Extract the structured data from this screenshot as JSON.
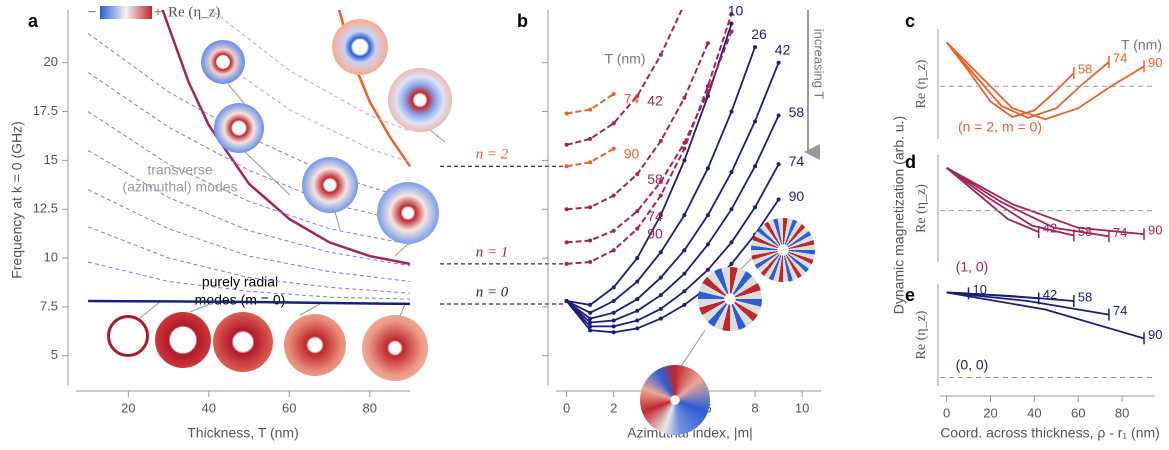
{
  "chart_data": [
    {
      "type": "line",
      "panel": "a",
      "xlabel": "Thickness, T (nm)",
      "ylabel": "Frequency at k = 0 (GHz)",
      "xlim": [
        7,
        90
      ],
      "ylim": [
        3.5,
        22.7
      ],
      "xticks": [
        20,
        40,
        60,
        80
      ],
      "yticks": [
        5,
        7.5,
        10,
        12.5,
        15,
        17.5,
        20
      ],
      "colorbar": {
        "low": "−",
        "high": "+",
        "label": "Re (η_z)"
      },
      "annotations": [
        "transverse",
        "(azimuthal) modes",
        "purely radial",
        "modes (m = 0)"
      ],
      "series": [
        {
          "name": "n = 0",
          "color": "#1b1f7a",
          "x": [
            10,
            30,
            50,
            70,
            90
          ],
          "values": [
            7.8,
            7.78,
            7.75,
            7.7,
            7.65
          ]
        },
        {
          "name": "n = 1",
          "color": "#a3245a",
          "x": [
            28,
            35,
            40,
            50,
            60,
            70,
            80,
            90
          ],
          "values": [
            23,
            19,
            16.8,
            13.8,
            12,
            10.8,
            10.1,
            9.7
          ]
        },
        {
          "name": "n = 2",
          "color": "#e8622a",
          "x": [
            72,
            76,
            80,
            85,
            90
          ],
          "values": [
            23,
            20,
            18,
            16.2,
            14.7
          ]
        },
        {
          "color": "#7b7fd6",
          "line_style": "dashed",
          "x": [
            10,
            30,
            50,
            70,
            90
          ],
          "values": [
            21.5,
            18.5,
            16.2,
            14.3,
            13
          ]
        },
        {
          "color": "#7b7fd6",
          "line_style": "dashed",
          "x": [
            10,
            30,
            50,
            70,
            90
          ],
          "values": [
            19.5,
            16.7,
            14.5,
            12.8,
            11.8
          ]
        },
        {
          "color": "#7b7fd6",
          "line_style": "dashed",
          "x": [
            10,
            30,
            50,
            70,
            90
          ],
          "values": [
            17.5,
            14.8,
            12.9,
            11.5,
            10.7
          ]
        },
        {
          "color": "#7b7fd6",
          "line_style": "dashed",
          "x": [
            10,
            30,
            50,
            70,
            90
          ],
          "values": [
            15.5,
            13.1,
            11.4,
            10.3,
            9.6
          ]
        },
        {
          "color": "#7b7fd6",
          "line_style": "dashed",
          "x": [
            10,
            30,
            50,
            70,
            90
          ],
          "values": [
            13.5,
            11.5,
            10.1,
            9.3,
            8.8
          ]
        },
        {
          "color": "#7b7fd6",
          "line_style": "dashed",
          "x": [
            10,
            30,
            50,
            70,
            90
          ],
          "values": [
            11.6,
            10,
            9,
            8.5,
            8.2
          ]
        },
        {
          "color": "#7b7fd6",
          "line_style": "dashed",
          "x": [
            10,
            30,
            50,
            70,
            90
          ],
          "values": [
            9.8,
            8.8,
            8.3,
            8,
            7.9
          ]
        },
        {
          "color": "#e79ab5",
          "line_style": "dashed",
          "x": [
            40,
            60,
            80,
            90
          ],
          "values": [
            20.5,
            17.6,
            15.6,
            14.9
          ]
        },
        {
          "color": "#e79ab5",
          "line_style": "dashed",
          "x": [
            40,
            60,
            80,
            90
          ],
          "values": [
            22.8,
            19.6,
            17.3,
            16.5
          ]
        }
      ]
    },
    {
      "type": "line",
      "panel": "b",
      "xlabel": "Azimuthal index, |m|",
      "legend_title": "T (nm)",
      "annotation": "increasing T",
      "xlim": [
        -0.45,
        10.8
      ],
      "ylim": [
        3.5,
        22.7
      ],
      "xticks": [
        0,
        2,
        4,
        6,
        8,
        10
      ],
      "markers": true,
      "x": [
        0,
        1,
        2,
        3,
        4,
        5,
        6,
        7,
        8,
        9
      ],
      "series": [
        {
          "name": "10",
          "color": "#1b1f7a",
          "values": [
            7.8,
            7.6,
            8.5,
            10,
            12.2,
            15,
            18.3,
            22,
            null,
            null
          ]
        },
        {
          "name": "26",
          "color": "#1b1f7a",
          "values": [
            7.8,
            7.2,
            7.8,
            8.8,
            10.3,
            12.2,
            14.6,
            17.5,
            20.8,
            null
          ]
        },
        {
          "name": "42",
          "color": "#1b1f7a",
          "values": [
            7.8,
            6.9,
            7.2,
            7.9,
            9,
            10.4,
            12.2,
            14.4,
            17,
            20
          ]
        },
        {
          "name": "58",
          "color": "#1b1f7a",
          "values": [
            7.8,
            6.7,
            6.8,
            7.3,
            8.1,
            9.2,
            10.7,
            12.5,
            14.7,
            17.3
          ]
        },
        {
          "name": "74",
          "color": "#1b1f7a",
          "values": [
            7.8,
            6.5,
            6.5,
            6.8,
            7.4,
            8.3,
            9.4,
            10.8,
            12.6,
            14.8
          ]
        },
        {
          "name": "90",
          "color": "#1b1f7a",
          "values": [
            7.8,
            6.3,
            6.2,
            6.4,
            6.9,
            7.6,
            8.5,
            9.7,
            11.2,
            13
          ]
        },
        {
          "name": "42",
          "color": "#a3245a",
          "line_style": "dashed",
          "values": [
            15.8,
            16.1,
            16.9,
            18.3,
            20.4,
            23,
            null,
            null,
            null,
            null
          ]
        },
        {
          "name": "58",
          "color": "#a3245a",
          "line_style": "dashed",
          "values": [
            12.5,
            12.6,
            13.2,
            14.3,
            16,
            18.2,
            21,
            null,
            null,
            null
          ]
        },
        {
          "name": "74",
          "color": "#a3245a",
          "line_style": "dashed",
          "values": [
            10.8,
            10.9,
            11.4,
            12.4,
            13.9,
            15.9,
            18.5,
            21.6,
            null,
            null
          ]
        },
        {
          "name": "90",
          "color": "#a3245a",
          "line_style": "dashed",
          "values": [
            9.7,
            9.8,
            10.4,
            11.5,
            13.2,
            15.6,
            18.8,
            22.5,
            null,
            null
          ]
        },
        {
          "name": "74",
          "color": "#e8622a",
          "line_style": "dashed",
          "values": [
            17.4,
            17.6,
            18.4,
            null,
            null,
            null,
            null,
            null,
            null,
            null
          ]
        },
        {
          "name": "90",
          "color": "#e8622a",
          "line_style": "dashed",
          "values": [
            14.7,
            14.9,
            15.6,
            null,
            null,
            null,
            null,
            null,
            null,
            null
          ]
        }
      ]
    },
    {
      "type": "line",
      "panel": "c",
      "ylabel": "Re (η_z)",
      "legend_title": "T (nm)",
      "annotation": "(n = 2, m = 0)",
      "xlim": [
        -3,
        95
      ],
      "ylim": [
        -1.2,
        1.3
      ],
      "series": [
        {
          "name": "58",
          "color": "#e8622a",
          "x": [
            0,
            10,
            20,
            30,
            40,
            50,
            58
          ],
          "values": [
            1,
            0.35,
            -0.35,
            -0.7,
            -0.55,
            -0.1,
            0.3
          ]
        },
        {
          "name": "74",
          "color": "#e8622a",
          "x": [
            0,
            12,
            25,
            37,
            50,
            62,
            74
          ],
          "values": [
            1,
            0.3,
            -0.45,
            -0.72,
            -0.5,
            0.05,
            0.55
          ]
        },
        {
          "name": "90",
          "color": "#e8622a",
          "x": [
            0,
            15,
            30,
            45,
            60,
            75,
            90
          ],
          "values": [
            1,
            0.25,
            -0.5,
            -0.75,
            -0.5,
            0,
            0.45
          ]
        }
      ]
    },
    {
      "type": "line",
      "panel": "d",
      "ylabel": "Re (η_z)",
      "shared_ylabel": "Dynamic magnetization (arb. u.)",
      "annotation": "(1, 0)",
      "xlim": [
        -3,
        95
      ],
      "ylim": [
        -1.2,
        1.3
      ],
      "series": [
        {
          "name": "42",
          "color": "#a3245a",
          "x": [
            0,
            14,
            28,
            42
          ],
          "values": [
            1,
            0.4,
            -0.2,
            -0.5
          ]
        },
        {
          "name": "58",
          "color": "#a3245a",
          "x": [
            0,
            19,
            39,
            58
          ],
          "values": [
            1,
            0.3,
            -0.35,
            -0.58
          ]
        },
        {
          "name": "74",
          "color": "#a3245a",
          "x": [
            0,
            25,
            49,
            74
          ],
          "values": [
            1,
            0.2,
            -0.4,
            -0.6
          ]
        },
        {
          "name": "90",
          "color": "#a3245a",
          "x": [
            0,
            30,
            60,
            90
          ],
          "values": [
            1,
            0.15,
            -0.4,
            -0.55
          ]
        }
      ]
    },
    {
      "type": "line",
      "panel": "e",
      "ylabel": "Re (η_z)",
      "annotation": "(0, 0)",
      "xlabel": "Coord. across thickness, ρ - r₁ (nm)",
      "xlim": [
        -3,
        95
      ],
      "ylim": [
        -0.1,
        1.1
      ],
      "xticks": [
        0,
        20,
        40,
        60,
        80
      ],
      "series": [
        {
          "name": "10",
          "color": "#1b1f7a",
          "x": [
            0,
            5,
            10
          ],
          "values": [
            1,
            0.995,
            0.99
          ]
        },
        {
          "name": "42",
          "color": "#1b1f7a",
          "x": [
            0,
            21,
            42
          ],
          "values": [
            1,
            0.97,
            0.93
          ]
        },
        {
          "name": "58",
          "color": "#1b1f7a",
          "x": [
            0,
            29,
            58
          ],
          "values": [
            1,
            0.96,
            0.9
          ]
        },
        {
          "name": "74",
          "color": "#1b1f7a",
          "x": [
            0,
            37,
            74
          ],
          "values": [
            1,
            0.9,
            0.74
          ]
        },
        {
          "name": "90",
          "color": "#1b1f7a",
          "x": [
            0,
            45,
            90
          ],
          "values": [
            1,
            0.8,
            0.46
          ]
        }
      ]
    }
  ]
}
